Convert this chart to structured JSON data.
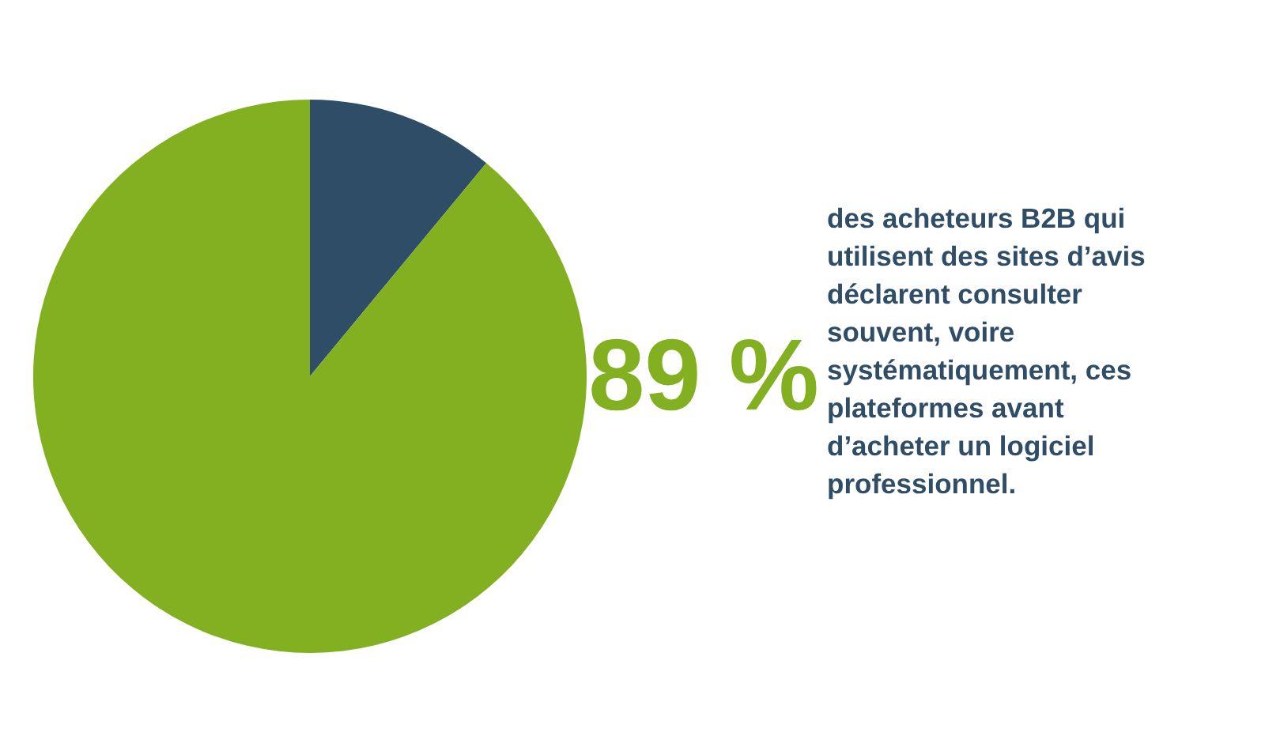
{
  "chart_data": {
    "type": "pie",
    "categories": [
      null,
      null
    ],
    "values": [
      11,
      89
    ],
    "colors": [
      "#2f4d66",
      "#82b020"
    ],
    "value_labels": [
      null,
      "89 %"
    ],
    "annotations": [
      "des acheteurs B2B qui utilisent des sites d’avis déclarent consulter souvent, voire systématiquement, ces plateformes avant d’acheter un logiciel professionnel."
    ]
  }
}
